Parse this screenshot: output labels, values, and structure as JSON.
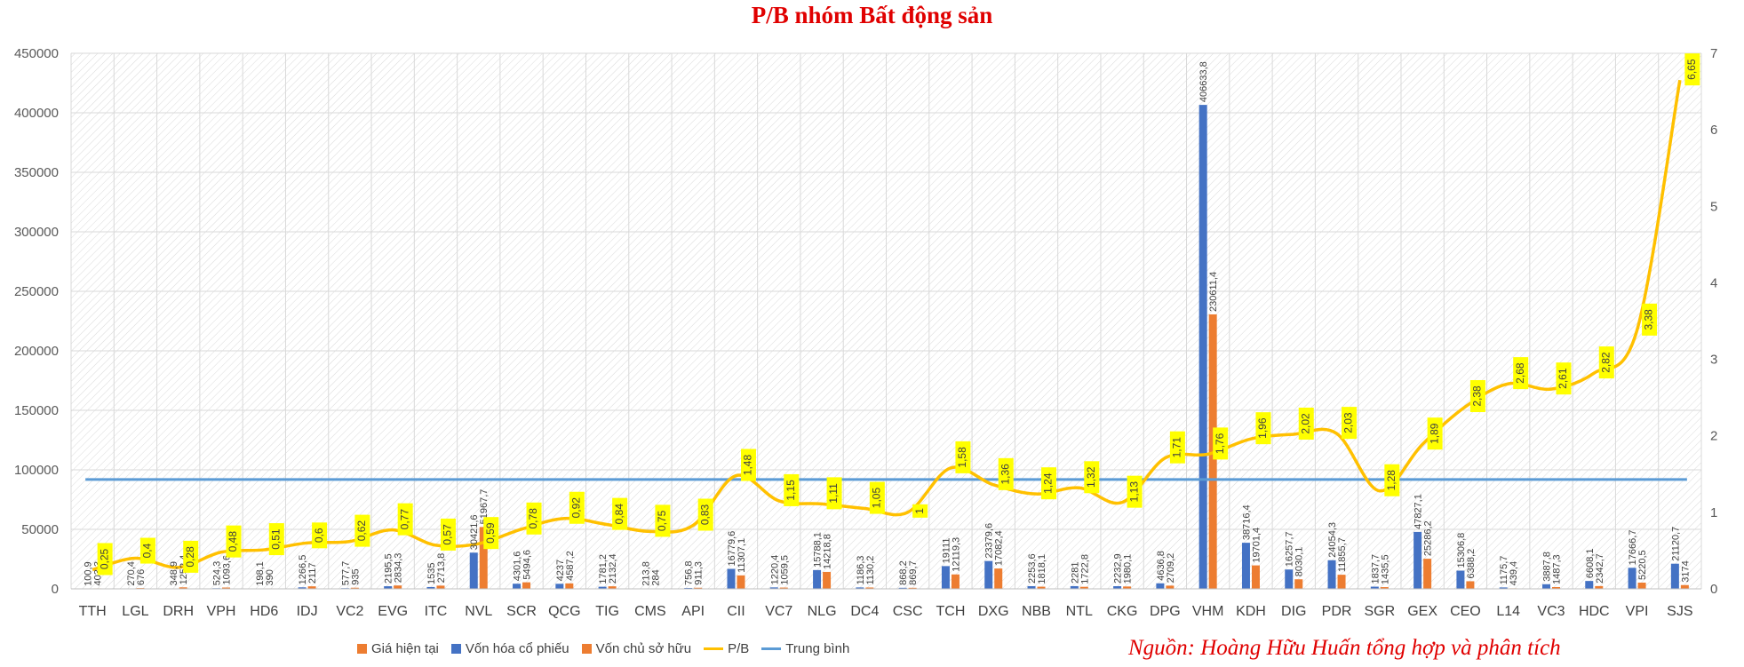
{
  "chart_data": {
    "type": "bar",
    "title": "P/B nhóm Bất động sản",
    "source": "Nguồn: Hoàng Hữu Huấn tổng hợp và phân tích",
    "categories": [
      "TTH",
      "LGL",
      "DRH",
      "VPH",
      "HD6",
      "IDJ",
      "VC2",
      "EVG",
      "ITC",
      "NVL",
      "SCR",
      "QCG",
      "TIG",
      "CMS",
      "API",
      "CII",
      "VC7",
      "NLG",
      "DC4",
      "CSC",
      "TCH",
      "DXG",
      "NBB",
      "NTL",
      "CKG",
      "DPG",
      "VHM",
      "KDH",
      "DIG",
      "PDR",
      "SGR",
      "GEX",
      "CEO",
      "L14",
      "VC3",
      "HDC",
      "VPI",
      "SJS"
    ],
    "y_left": {
      "min": 0,
      "max": 450000,
      "ticks": [
        0,
        50000,
        100000,
        150000,
        200000,
        250000,
        300000,
        350000,
        400000,
        450000
      ]
    },
    "y_right": {
      "min": 0,
      "max": 7,
      "ticks": [
        0,
        1,
        2,
        3,
        4,
        5,
        6,
        7
      ]
    },
    "series": [
      {
        "name": "Vốn hóa cổ phiếu",
        "color": "#4472c4",
        "axis": "left",
        "values": [
          100.9,
          270.4,
          348.9,
          524.3,
          198.1,
          1266.5,
          577.7,
          2195.5,
          1535,
          30421.6,
          4301.6,
          4237,
          1781.2,
          213.8,
          756.8,
          16779.6,
          1220.4,
          15788.1,
          1186.3,
          868.2,
          19111,
          23379.6,
          2253.6,
          2281,
          2232.9,
          4636.8,
          406633.8,
          38716.4,
          16257.7,
          24054.3,
          1837.7,
          47827.1,
          15306.8,
          1175.7,
          3887.8,
          6608.1,
          17666.7,
          21120.7
        ],
        "labels": [
          "100,9",
          "270,4",
          "348,9",
          "524,3",
          "198,1",
          "1266,5",
          "577,7",
          "2195,5",
          "1535",
          "30421,6",
          "4301,6",
          "4237",
          "1781,2",
          "213,8",
          "756,8",
          "16779,6",
          "1220,4",
          "15788,1",
          "1186,3",
          "868,2",
          "19111",
          "23379,6",
          "2253,6",
          "2281",
          "2232,9",
          "4636,8",
          "406633,8",
          "38716,4",
          "16257,7",
          "24054,3",
          "1837,7",
          "47827,1",
          "15306,8",
          "1175,7",
          "3887,8",
          "6608,1",
          "17666,7",
          "21120,7"
        ]
      },
      {
        "name": "Vốn chủ sở hữu",
        "color": "#ed7d31",
        "axis": "left",
        "values": [
          403.3,
          676,
          1252.4,
          1093.6,
          390,
          2117,
          935,
          2834.3,
          2713.8,
          51967.7,
          5494.6,
          4587.2,
          2132.4,
          284,
          911.3,
          11307.1,
          1059.5,
          14218.8,
          1130.2,
          869.7,
          12119.3,
          17082.4,
          1818.1,
          1722.8,
          1980.1,
          2709.2,
          230611.4,
          19701.4,
          8030.1,
          11855.7,
          1435.5,
          25286.2,
          6388.2,
          439.4,
          1487.3,
          2342.7,
          5220.5,
          3174
        ],
        "labels": [
          "403,3",
          "676",
          "1252,4",
          "1093,6",
          "390",
          "2117",
          "935",
          "2834,3",
          "2713,8",
          "51967,7",
          "5494,6",
          "4587,2",
          "2132,4",
          "284",
          "911,3",
          "11307,1",
          "1059,5",
          "14218,8",
          "1130,2",
          "869,7",
          "12119,3",
          "17082,4",
          "1818,1",
          "1722,8",
          "1980,1",
          "2709,2",
          "230611,4",
          "19701,4",
          "8030,1",
          "11855,7",
          "1435,5",
          "25286,2",
          "6388,2",
          "439,4",
          "1487,3",
          "2342,7",
          "5220,5",
          "3174"
        ]
      },
      {
        "name": "P/B",
        "color": "#ffc000",
        "axis": "right",
        "values": [
          0.25,
          0.4,
          0.28,
          0.48,
          0.51,
          0.6,
          0.62,
          0.77,
          0.57,
          0.59,
          0.78,
          0.92,
          0.84,
          0.75,
          0.83,
          1.48,
          1.15,
          1.11,
          1.05,
          1.0,
          1.58,
          1.36,
          1.24,
          1.32,
          1.13,
          1.71,
          1.76,
          1.96,
          2.02,
          2.03,
          1.28,
          1.89,
          2.38,
          2.68,
          2.61,
          2.82,
          3.38,
          6.65
        ],
        "labels": [
          "0,25",
          "0,4",
          "0,28",
          "0,48",
          "0,51",
          "0,6",
          "0,62",
          "0,77",
          "0,57",
          "0,59",
          "0,78",
          "0,92",
          "0,84",
          "0,75",
          "0,83",
          "1,48",
          "1,15",
          "1,11",
          "1,05",
          "1",
          "1,58",
          "1,36",
          "1,24",
          "1,32",
          "1,13",
          "1,71",
          "1,76",
          "1,96",
          "2,02",
          "2,03",
          "1,28",
          "1,89",
          "2,38",
          "2,68",
          "2,61",
          "2,82",
          "3,38",
          "6,65"
        ]
      },
      {
        "name": "Trung bình",
        "color": "#5b9bd5",
        "axis": "right",
        "value": 1.43
      }
    ],
    "legend": {
      "position": "bottom",
      "entries": [
        "Giá hiện tại",
        "Vốn hóa cổ phiếu",
        "Vốn chủ sở hữu",
        "P/B",
        "Trung bình"
      ]
    },
    "legend_colors": [
      "#ed7d31",
      "#4472c4",
      "#ed7d31",
      "#ffc000",
      "#5b9bd5"
    ],
    "grid": true
  }
}
